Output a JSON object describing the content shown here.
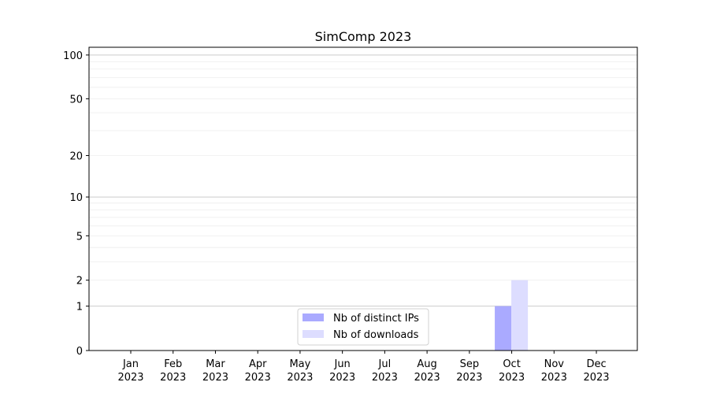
{
  "chart_data": {
    "type": "bar",
    "title": "SimComp 2023",
    "xlabel": "",
    "ylabel": "",
    "yscale": "log(1+y)",
    "ylim": [
      0,
      113
    ],
    "grid": "horizontal, major and minor",
    "legend_placement": "lower center",
    "categories": [
      [
        "Jan",
        "2023"
      ],
      [
        "Feb",
        "2023"
      ],
      [
        "Mar",
        "2023"
      ],
      [
        "Apr",
        "2023"
      ],
      [
        "May",
        "2023"
      ],
      [
        "Jun",
        "2023"
      ],
      [
        "Jul",
        "2023"
      ],
      [
        "Aug",
        "2023"
      ],
      [
        "Sep",
        "2023"
      ],
      [
        "Oct",
        "2023"
      ],
      [
        "Nov",
        "2023"
      ],
      [
        "Dec",
        "2023"
      ]
    ],
    "yticks": [
      0,
      1,
      2,
      5,
      10,
      20,
      50,
      100
    ],
    "series": [
      {
        "name": "Nb of distinct IPs",
        "color": "#aaaaff",
        "values": [
          0,
          0,
          0,
          0,
          0,
          0,
          0,
          0,
          0,
          1,
          0,
          0
        ]
      },
      {
        "name": "Nb of downloads",
        "color": "#ddddff",
        "values": [
          0,
          0,
          0,
          0,
          0,
          0,
          0,
          0,
          0,
          2,
          0,
          0
        ]
      }
    ]
  }
}
